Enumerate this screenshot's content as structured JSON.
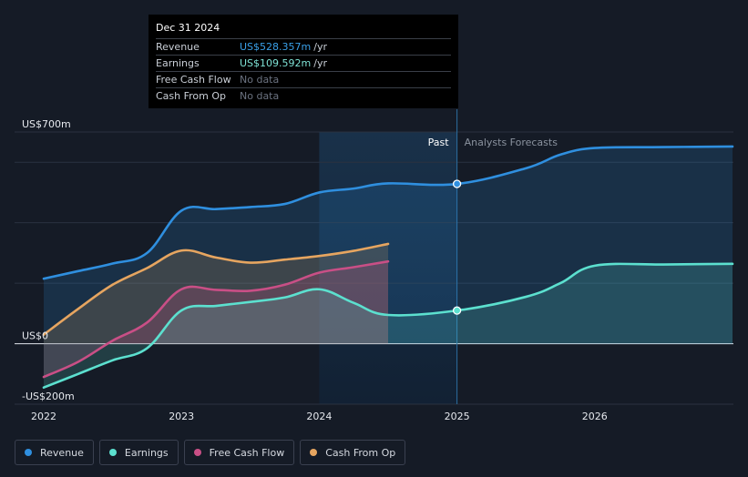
{
  "chart_data": {
    "type": "line",
    "title": "",
    "xlabel": "",
    "ylabel": "",
    "ylim": [
      -200,
      700
    ],
    "xlim": [
      2022,
      2027
    ],
    "y_axis_labels": [
      "US$700m",
      "US$0",
      "-US$200m"
    ],
    "y_axis_values": [
      700,
      0,
      -200
    ],
    "x_ticks": [
      2022,
      2023,
      2024,
      2025,
      2026
    ],
    "x_tick_labels": [
      "2022",
      "2023",
      "2024",
      "2025",
      "2026"
    ],
    "past_label": "Past",
    "forecast_label": "Analysts Forecasts",
    "divider_x": 2025.0,
    "highlight_start": 2024.0,
    "series": [
      {
        "name": "Revenue",
        "color": "#2f8fdf",
        "points": [
          [
            2022.0,
            215
          ],
          [
            2022.25,
            240
          ],
          [
            2022.5,
            265
          ],
          [
            2022.75,
            300
          ],
          [
            2023.0,
            440
          ],
          [
            2023.25,
            445
          ],
          [
            2023.5,
            452
          ],
          [
            2023.75,
            462
          ],
          [
            2024.0,
            500
          ],
          [
            2024.25,
            513
          ],
          [
            2024.5,
            530
          ],
          [
            2025.0,
            528.357
          ],
          [
            2025.5,
            580
          ],
          [
            2025.75,
            625
          ],
          [
            2026.0,
            647
          ],
          [
            2026.5,
            650
          ],
          [
            2027.0,
            652
          ]
        ],
        "smooth_override": true
      },
      {
        "name": "Earnings",
        "color": "#5ce0cf",
        "points": [
          [
            2022.0,
            -145
          ],
          [
            2022.25,
            -100
          ],
          [
            2022.5,
            -55
          ],
          [
            2022.75,
            -15
          ],
          [
            2023.0,
            110
          ],
          [
            2023.25,
            125
          ],
          [
            2023.5,
            138
          ],
          [
            2023.75,
            153
          ],
          [
            2024.0,
            180
          ],
          [
            2024.25,
            135
          ],
          [
            2024.5,
            95
          ],
          [
            2025.0,
            109.592
          ],
          [
            2025.5,
            155
          ],
          [
            2025.75,
            200
          ],
          [
            2026.0,
            258
          ],
          [
            2026.5,
            262
          ],
          [
            2027.0,
            264
          ]
        ]
      },
      {
        "name": "Free Cash Flow",
        "color": "#c94f86",
        "points": [
          [
            2022.0,
            -110
          ],
          [
            2022.25,
            -60
          ],
          [
            2022.5,
            10
          ],
          [
            2022.75,
            70
          ],
          [
            2023.0,
            180
          ],
          [
            2023.25,
            178
          ],
          [
            2023.5,
            175
          ],
          [
            2023.75,
            195
          ],
          [
            2024.0,
            235
          ],
          [
            2024.25,
            253
          ],
          [
            2024.5,
            272
          ]
        ]
      },
      {
        "name": "Cash From Op",
        "color": "#e6a560",
        "points": [
          [
            2022.0,
            30
          ],
          [
            2022.25,
            115
          ],
          [
            2022.5,
            195
          ],
          [
            2022.75,
            250
          ],
          [
            2023.0,
            308
          ],
          [
            2023.25,
            285
          ],
          [
            2023.5,
            268
          ],
          [
            2023.75,
            278
          ],
          [
            2024.0,
            290
          ],
          [
            2024.25,
            307
          ],
          [
            2024.5,
            330
          ]
        ]
      }
    ]
  },
  "tooltip": {
    "date": "Dec 31 2024",
    "rows": [
      {
        "label": "Revenue",
        "value": "US$528.357m",
        "unit": "/yr"
      },
      {
        "label": "Earnings",
        "value": "US$109.592m",
        "unit": "/yr"
      },
      {
        "label": "Free Cash Flow",
        "value": "No data",
        "unit": ""
      },
      {
        "label": "Cash From Op",
        "value": "No data",
        "unit": ""
      }
    ]
  },
  "legend": [
    {
      "label": "Revenue",
      "color": "#2f8fdf"
    },
    {
      "label": "Earnings",
      "color": "#5ce0cf"
    },
    {
      "label": "Free Cash Flow",
      "color": "#c94f86"
    },
    {
      "label": "Cash From Op",
      "color": "#e6a560"
    }
  ]
}
